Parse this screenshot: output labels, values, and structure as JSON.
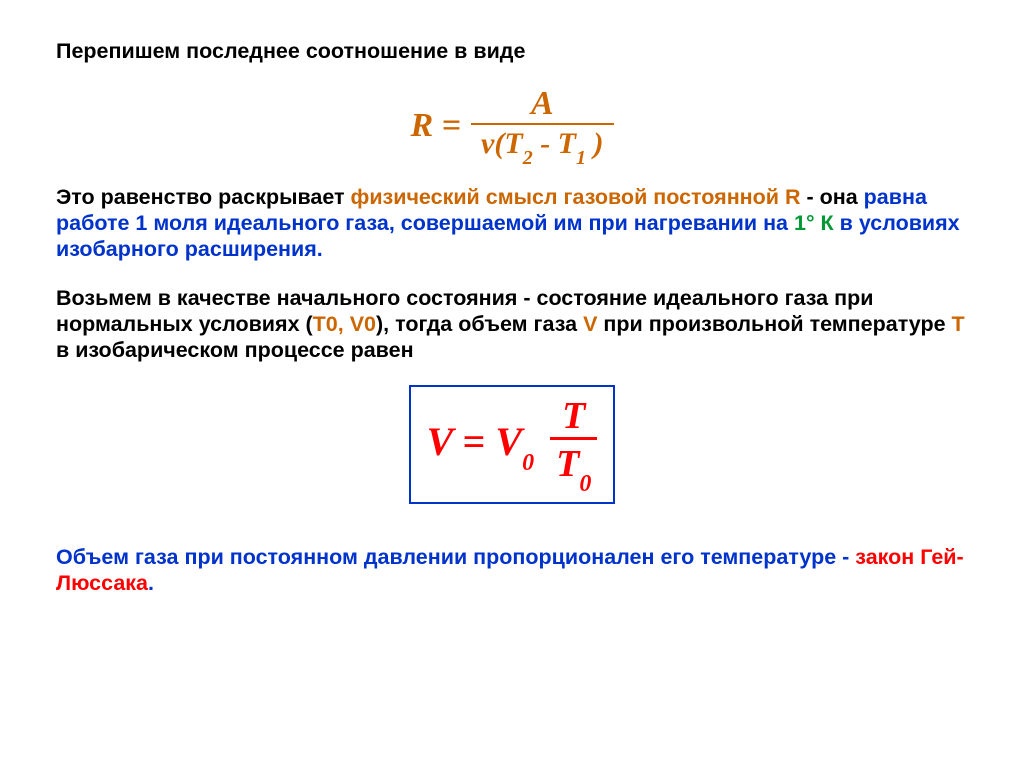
{
  "colors": {
    "orange": "#cc6600",
    "blue": "#0033cc",
    "red": "#ff0000",
    "green": "#009933",
    "black": "#000000",
    "background": "#ffffff"
  },
  "typography": {
    "body_fontsize_pt": 16,
    "body_weight": "bold",
    "body_family": "Arial",
    "formula_family": "Times New Roman",
    "formula_style": "italic"
  },
  "p1": {
    "t1": "Перепишем последнее соотношение в виде"
  },
  "formula1": {
    "lhs": "R =",
    "numerator": "A",
    "den_prefix": "ν(T",
    "den_sub1": "2",
    "den_mid": " - T",
    "den_sub2": "1",
    "den_suffix": " )",
    "color": "#cc6600",
    "fontsize_pt": 26
  },
  "p2": {
    "t1": "Это равенство раскрывает ",
    "t2": "физический смысл газовой постоянной R",
    "t3": " - она ",
    "t4": "равна работе 1 моля",
    "t5": " идеального газа, совершаемой им при нагревании на  ",
    "t6": "1° К",
    "t7": "  в условиях изобарного расширения."
  },
  "p3": {
    "t1": "Возьмем в качестве начального состояния - состояние идеального газа при нормальных условиях (",
    "t2": "T0, V0",
    "t3": "), тогда объем газа ",
    "t4": "V",
    "t5": " при произвольной температуре ",
    "t6": "T",
    "t7": " в изобарическом процессе равен"
  },
  "formula2": {
    "lhs1": "V ",
    "eq": "=",
    "lhs2": " V",
    "lhs2_sub": "0",
    "num": "T",
    "den1": "T",
    "den_sub": "0",
    "border_color": "#0033cc",
    "text_color": "#ff0000",
    "fontsize_pt": 30
  },
  "p4": {
    "t1": "Объем газа при постоянном давлении пропорционален его температуре",
    "t2": "  -  ",
    "t3": "закон Гей-Люссака",
    "t4": "."
  }
}
